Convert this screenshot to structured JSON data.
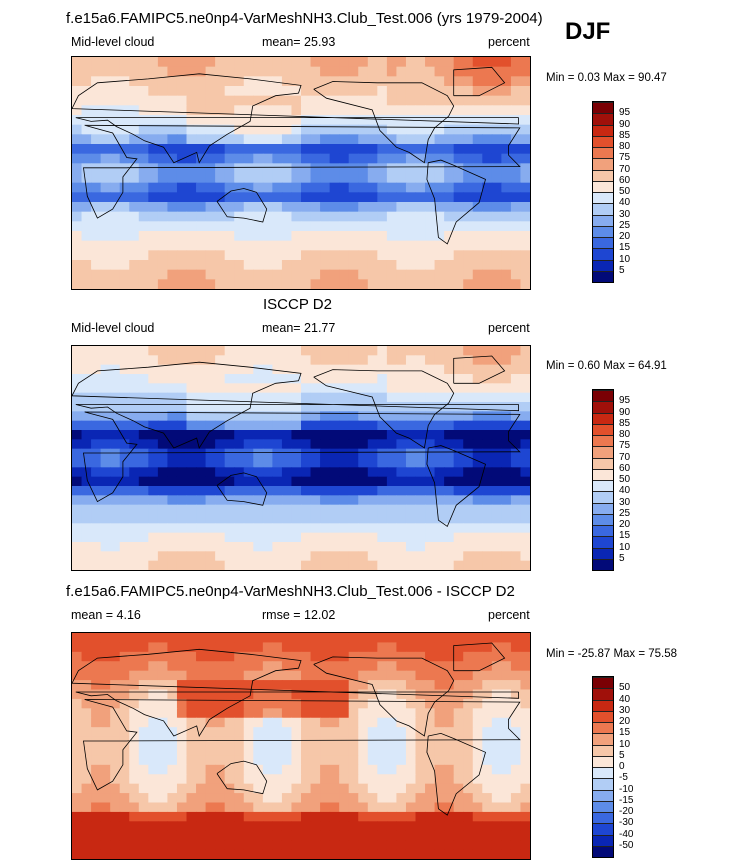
{
  "figure": {
    "season": "DJF",
    "title_model": "f.e15a6.FAMIPC5.ne0np4-VarMeshNH3.Club_Test.006 (yrs 1979-2004)",
    "title_obs": "ISCCP D2",
    "title_diff": "f.e15a6.FAMIPC5.ne0np4-VarMeshNH3.Club_Test.006 - ISCCP D2"
  },
  "colors": {
    "abs_scale": [
      "#020a78",
      "#0a26b4",
      "#1e46d2",
      "#3a68e0",
      "#5d8ce8",
      "#87acef",
      "#b1cdf5",
      "#d9e8fa",
      "#fbe6d8",
      "#f6c7a9",
      "#f1a17c",
      "#ec7850",
      "#e2502c",
      "#c82812",
      "#a0100a",
      "#7a0004"
    ],
    "diff_scale": [
      "#020a78",
      "#0a26b4",
      "#1e46d2",
      "#3a68e0",
      "#5d8ce8",
      "#87acef",
      "#b1cdf5",
      "#d9e8fa",
      "#fbe6d8",
      "#f6c7a9",
      "#f1a17c",
      "#ec7850",
      "#e2502c",
      "#c82812",
      "#a0100a",
      "#7a0004"
    ]
  },
  "chart_data": [
    {
      "type": "heatmap",
      "name": "model",
      "title": "f.e15a6.FAMIPC5.ne0np4-VarMeshNH3.Club_Test.006 (yrs 1979-2004)",
      "variable": "Mid-level cloud",
      "units": "percent",
      "stat_line": "mean=  25.93",
      "mean": 25.93,
      "min": 0.03,
      "max": 90.47,
      "minmax_text": "Min =   0.03 Max =  90.47",
      "colorbar_levels": [
        "5",
        "10",
        "15",
        "20",
        "25",
        "30",
        "40",
        "50",
        "60",
        "70",
        "75",
        "80",
        "85",
        "90",
        "95"
      ]
    },
    {
      "type": "heatmap",
      "name": "obs",
      "title": "ISCCP D2",
      "variable": "Mid-level cloud",
      "units": "percent",
      "stat_line": "mean=  21.77",
      "mean": 21.77,
      "min": 0.6,
      "max": 64.91,
      "minmax_text": "Min =   0.60 Max =  64.91",
      "colorbar_levels": [
        "5",
        "10",
        "15",
        "20",
        "25",
        "30",
        "40",
        "50",
        "60",
        "70",
        "75",
        "80",
        "85",
        "90",
        "95"
      ]
    },
    {
      "type": "heatmap",
      "name": "difference",
      "title": "f.e15a6.FAMIPC5.ne0np4-VarMeshNH3.Club_Test.006 - ISCCP D2",
      "units": "percent",
      "stat_line": "mean =   4.16",
      "rmse_line": "rmse =   12.02",
      "mean": 4.16,
      "rmse": 12.02,
      "min": -25.87,
      "max": 75.58,
      "minmax_text": "Min = -25.87 Max =  75.58",
      "colorbar_levels": [
        "-50",
        "-40",
        "-30",
        "-20",
        "-15",
        "-10",
        "-5",
        "0",
        "5",
        "10",
        "15",
        "20",
        "30",
        "40",
        "50"
      ]
    }
  ]
}
